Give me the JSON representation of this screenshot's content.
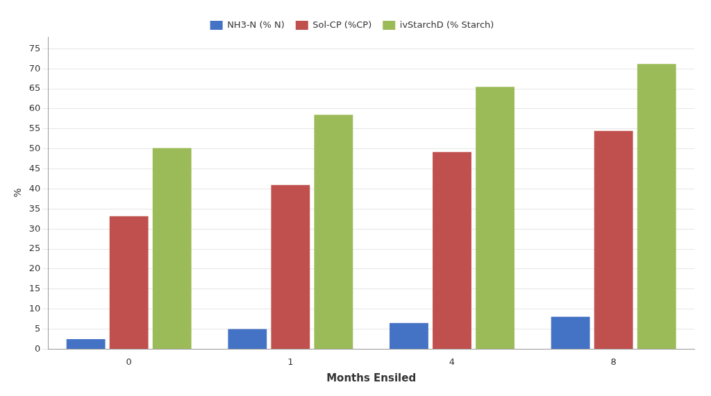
{
  "chart_data": {
    "type": "bar",
    "xlabel": "Months Ensiled",
    "ylabel": "%",
    "categories": [
      "0",
      "1",
      "4",
      "8"
    ],
    "series": [
      {
        "name": "NH3-N (% N)",
        "color": "#4472C4",
        "values": [
          2.5,
          5.0,
          6.5,
          8.1
        ]
      },
      {
        "name": "Sol-CP (%CP)",
        "color": "#C0504D",
        "values": [
          33.2,
          41.0,
          49.2,
          54.5
        ]
      },
      {
        "name": "ivStarchD (% Starch)",
        "color": "#9BBB59",
        "values": [
          50.2,
          58.5,
          65.5,
          71.2
        ]
      }
    ],
    "ylim": [
      0,
      78
    ],
    "yticks": [
      0,
      5,
      10,
      15,
      20,
      25,
      30,
      35,
      40,
      45,
      50,
      55,
      60,
      65,
      70,
      75
    ],
    "grid": true,
    "legend": "top"
  }
}
